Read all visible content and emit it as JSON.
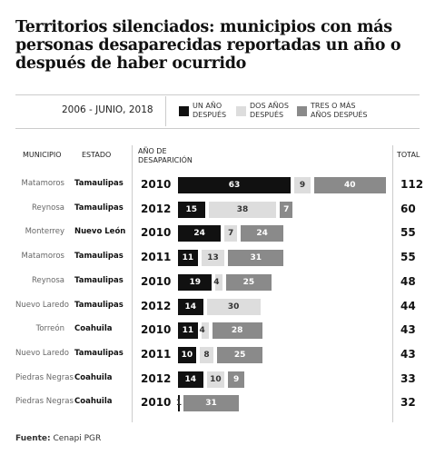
{
  "chart_data": {
    "type": "bar",
    "orientation": "horizontal",
    "stacked": true,
    "title": "Territorios silenciados: municipios con más personas desaparecidas reportadas un año o después de haber ocurrido",
    "period": "2006 - JUNIO, 2018",
    "columns": {
      "municipio": "MUNICIPIO",
      "estado": "ESTADO",
      "year": "AÑO DE DESAPARICIÓN",
      "total": "TOTAL"
    },
    "municipios": [
      "Matamoros",
      "Reynosa",
      "Monterrey",
      "Matamoros",
      "Reynosa",
      "Nuevo Laredo",
      "Torreón",
      "Nuevo Laredo",
      "Piedras Negras",
      "Piedras Negras"
    ],
    "estados": [
      "Tamaulipas",
      "Tamaulipas",
      "Nuevo León",
      "Tamaulipas",
      "Tamaulipas",
      "Tamaulipas",
      "Coahuila",
      "Tamaulipas",
      "Coahuila",
      "Coahuila"
    ],
    "years": [
      2010,
      2012,
      2010,
      2011,
      2010,
      2012,
      2010,
      2011,
      2012,
      2010
    ],
    "totals": [
      112,
      60,
      55,
      55,
      48,
      44,
      43,
      43,
      33,
      32
    ],
    "series": [
      {
        "name": "UN AÑO DESPUÉS",
        "color": "#111111",
        "label_color": "#ffffff",
        "values": [
          63,
          15,
          24,
          11,
          19,
          14,
          11,
          10,
          14,
          1
        ]
      },
      {
        "name": "DOS AÑOS DESPUÉS",
        "color": "#dddddd",
        "label_color": "#333333",
        "values": [
          9,
          38,
          7,
          13,
          4,
          30,
          4,
          8,
          10,
          null
        ]
      },
      {
        "name": "TRES O MÁS AÑOS DESPUÉS",
        "color": "#8a8a8a",
        "label_color": "#ffffff",
        "values": [
          40,
          7,
          24,
          31,
          25,
          null,
          28,
          25,
          9,
          31
        ]
      }
    ],
    "source_label": "Fuente:",
    "source": "Cenapi PGR"
  }
}
